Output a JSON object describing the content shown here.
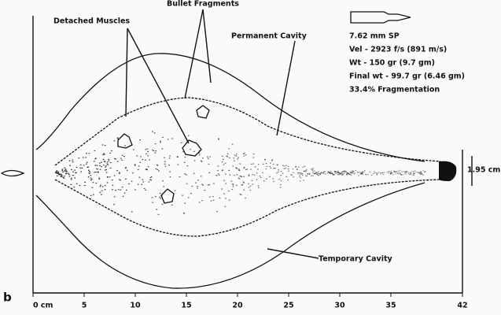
{
  "panel_label": "b",
  "labels": {
    "detached_muscles": "Detached Muscles",
    "bullet_fragments": "Bullet Fragments",
    "permanent_cavity": "Permanent Cavity",
    "temporary_cavity": "Temporary Cavity",
    "exit_width": "1.95 cm"
  },
  "specs": [
    "7.62 mm SP",
    "Vel - 2923 f/s  (891 m/s)",
    "Wt - 150 gr  (9.7 gm)",
    "Final wt - 99.7 gr  (6.46 gm)",
    "33.4% Fragmentation"
  ],
  "axis": {
    "xlim": [
      0,
      42
    ],
    "ticks": [
      {
        "value": 0,
        "label": "0 cm"
      },
      5,
      10,
      15,
      20,
      25,
      30,
      35,
      42
    ]
  }
}
